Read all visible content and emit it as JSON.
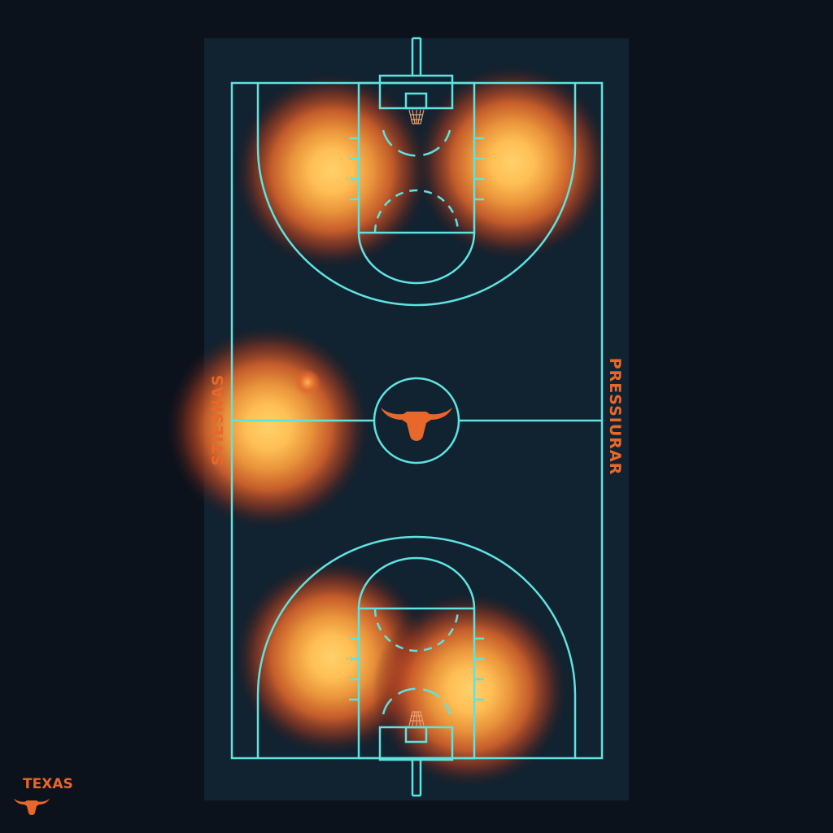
{
  "court": {
    "left_label": "STIESNAS",
    "right_label": "PRESSIURAR",
    "center_logo": "longhorn-icon"
  },
  "brand": {
    "text": "TEXAS",
    "logo": "longhorn-icon"
  },
  "colors": {
    "background": "#0c121c",
    "court_floor": "#112230",
    "court_lines": "#5ee3e0",
    "accent": "#e8672a",
    "heat_core": "#ffc25a",
    "heat_outer": "#d8451c"
  },
  "heat_zones": [
    {
      "name": "top-left-wing",
      "intensity": 1.0
    },
    {
      "name": "top-right-wing",
      "intensity": 1.0
    },
    {
      "name": "left-midcourt-sideline",
      "intensity": 0.95
    },
    {
      "name": "bottom-left-wing",
      "intensity": 1.0
    },
    {
      "name": "bottom-right-wing",
      "intensity": 1.0
    }
  ]
}
